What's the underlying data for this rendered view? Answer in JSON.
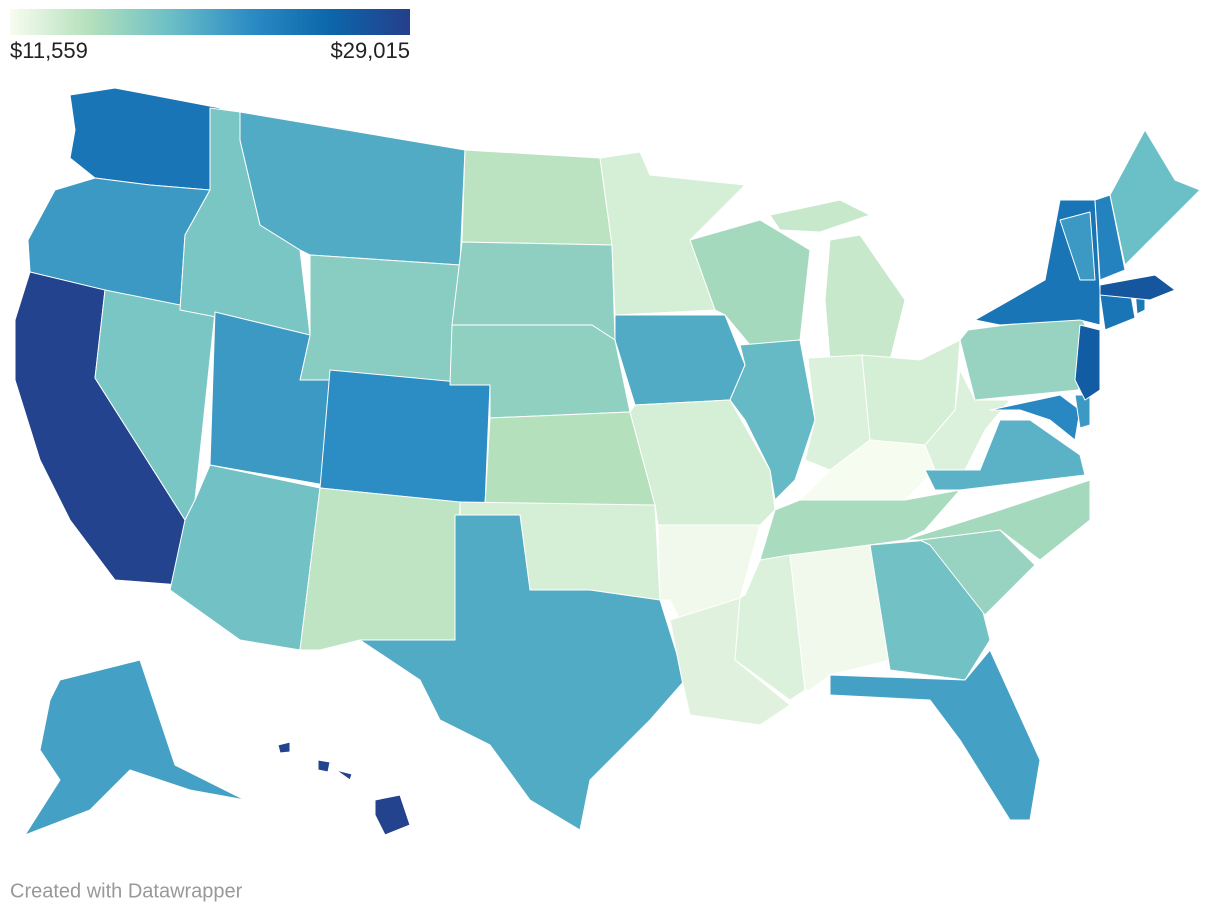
{
  "chart_data": {
    "type": "choropleth",
    "colorlim": [
      11559,
      29015
    ],
    "colorticks": [
      {
        "value": 11559,
        "label": "$11,559"
      },
      {
        "value": 29015,
        "label": "$29,015"
      }
    ],
    "colors": [
      "#f7fcf0",
      "#b4e0bc",
      "#6bbfc6",
      "#2c8cc4",
      "#0c66ab",
      "#253f8b"
    ],
    "values": [
      24127,
      21160,
      28666,
      17843,
      17843,
      19937,
      17145,
      21160,
      22033,
      18192,
      14527,
      14701,
      16796,
      16756,
      15050,
      13305,
      19937,
      13305,
      19937,
      13305,
      11908,
      12781,
      15748,
      18890,
      14003,
      12956,
      13305,
      11559,
      15574,
      12956,
      11908,
      18192,
      20636,
      16447,
      15748,
      19413,
      12956,
      22382,
      21160,
      16447,
      26397,
      24127,
      24127,
      23778,
      26920,
      21160,
      22905,
      18541,
      20636,
      28666
    ],
    "credit": "Created with Datawrapper"
  }
}
